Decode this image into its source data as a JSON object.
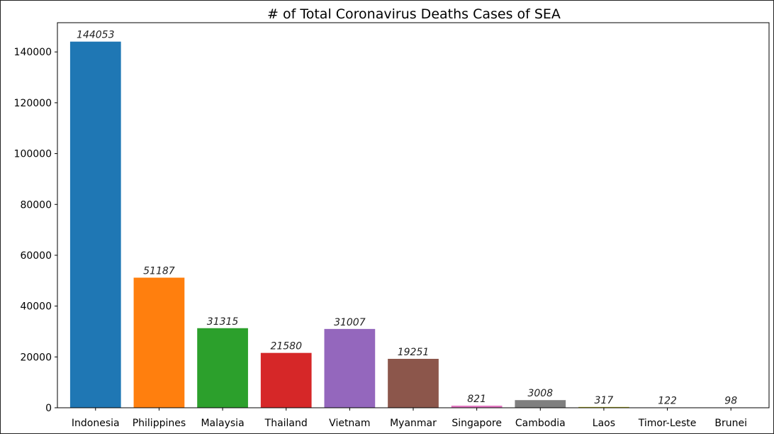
{
  "chart_data": {
    "type": "bar",
    "title": "# of Total Coronavirus Deaths Cases of SEA",
    "xlabel": "",
    "ylabel": "",
    "ylim": [
      0,
      151500
    ],
    "yticks": [
      0,
      20000,
      40000,
      60000,
      80000,
      100000,
      120000,
      140000
    ],
    "grid": false,
    "categories": [
      "Indonesia",
      "Philippines",
      "Malaysia",
      "Thailand",
      "Vietnam",
      "Myanmar",
      "Singapore",
      "Cambodia",
      "Laos",
      "Timor-Leste",
      "Brunei"
    ],
    "values": [
      144053,
      51187,
      31315,
      21580,
      31007,
      19251,
      821,
      3008,
      317,
      122,
      98
    ],
    "data_labels": [
      "144053",
      "51187",
      "31315",
      "21580",
      "31007",
      "19251",
      "821",
      "3008",
      "317",
      "122",
      "98"
    ],
    "colors": [
      "#1f77b4",
      "#ff7f0e",
      "#2ca02c",
      "#d62728",
      "#9467bd",
      "#8c564b",
      "#e377c2",
      "#7f7f7f",
      "#bcbd22",
      "#17becf",
      "#1f77b4"
    ]
  }
}
